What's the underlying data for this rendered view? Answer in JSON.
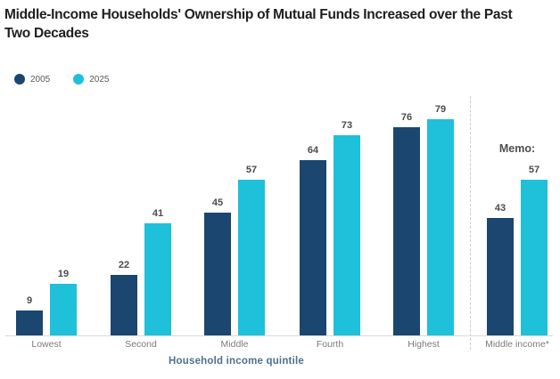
{
  "title": {
    "line1": "Middle-Income Households' Ownership of Mutual Funds Increased over the Past",
    "line2": "Two Decades"
  },
  "chart_data": {
    "type": "bar",
    "title": "Middle-Income Households' Ownership of Mutual Funds Increased over the Past Two Decades",
    "categories": [
      "Lowest",
      "Second",
      "Middle",
      "Fourth",
      "Highest",
      "Middle income*"
    ],
    "series": [
      {
        "name": "2005",
        "color": "#1b4670",
        "values": [
          9,
          22,
          45,
          64,
          76,
          43
        ]
      },
      {
        "name": "2025",
        "color": "#1fc0da",
        "values": [
          19,
          41,
          57,
          73,
          79,
          57
        ]
      }
    ],
    "xlabel": "Household income quintile",
    "ylabel": "",
    "ylim": [
      0,
      85
    ],
    "grid": false,
    "value_labels_shown": true,
    "legend_position": "top-left",
    "memo": {
      "label": "Memo:",
      "applies_to_category": "Middle income*",
      "divider_before_category": "Middle income*"
    }
  }
}
